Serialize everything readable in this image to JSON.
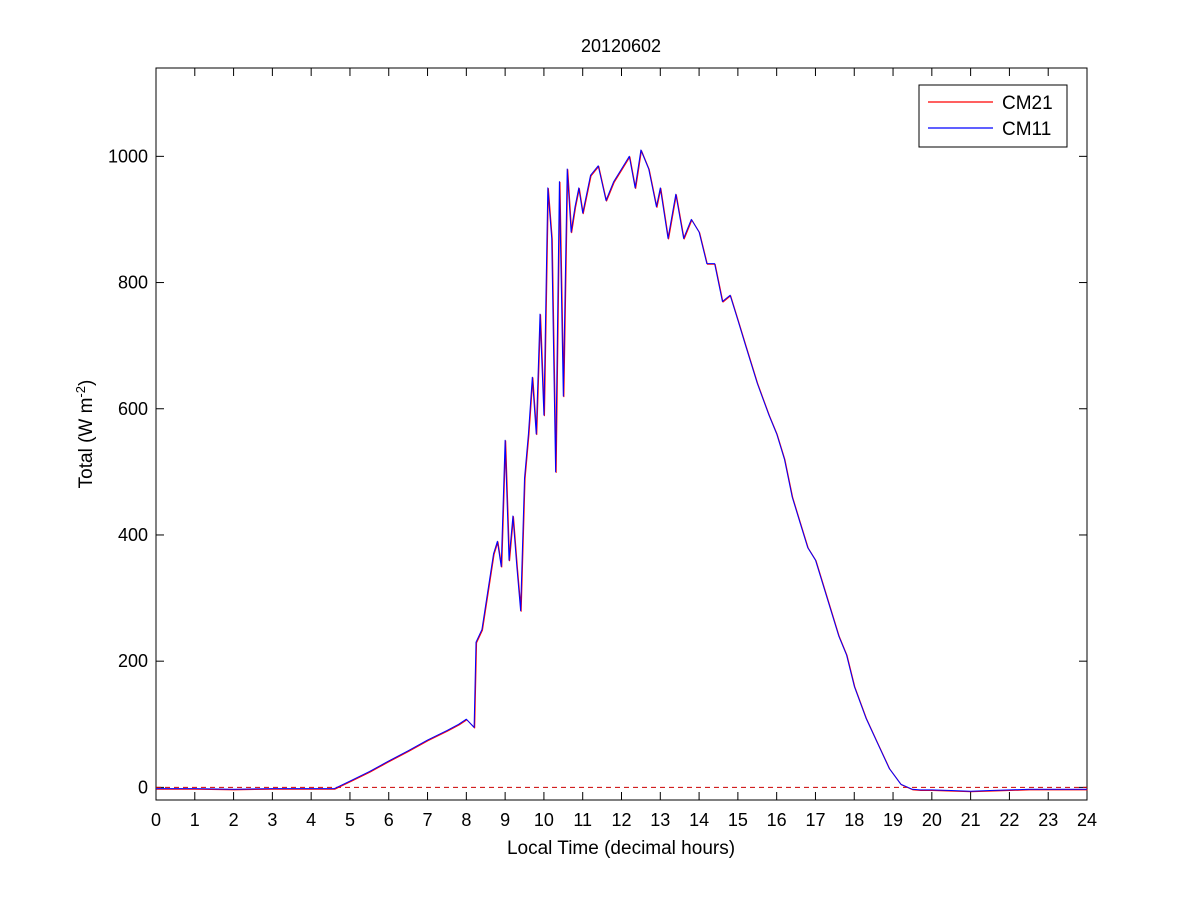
{
  "chart_data": {
    "type": "line",
    "title": "20120602",
    "xlabel": "Local Time (decimal hours)",
    "ylabel_prefix": "Total (W m",
    "ylabel_sup": "-2",
    "ylabel_suffix": ")",
    "xlim": [
      0,
      24
    ],
    "ylim": [
      -20,
      1140
    ],
    "xticks": [
      0,
      1,
      2,
      3,
      4,
      5,
      6,
      7,
      8,
      9,
      10,
      11,
      12,
      13,
      14,
      15,
      16,
      17,
      18,
      19,
      20,
      21,
      22,
      23,
      24
    ],
    "yticks": [
      0,
      200,
      400,
      600,
      800,
      1000
    ],
    "grid": false,
    "legend_position": "top-right",
    "reference_line": {
      "y": 0,
      "style": "dashed",
      "color": "#cc0000"
    },
    "series": [
      {
        "name": "CM21",
        "color": "#ff0000"
      },
      {
        "name": "CM11",
        "color": "#0000ff"
      }
    ],
    "x": [
      0,
      1,
      2,
      3,
      4,
      4.6,
      5,
      5.5,
      6,
      6.5,
      7,
      7.5,
      7.8,
      8,
      8.2,
      8.25,
      8.4,
      8.7,
      8.8,
      8.9,
      9,
      9.1,
      9.2,
      9.3,
      9.4,
      9.5,
      9.6,
      9.7,
      9.8,
      9.9,
      10,
      10.1,
      10.2,
      10.3,
      10.4,
      10.5,
      10.6,
      10.7,
      10.8,
      10.9,
      11,
      11.2,
      11.4,
      11.6,
      11.8,
      12,
      12.2,
      12.35,
      12.5,
      12.7,
      12.9,
      13,
      13.2,
      13.4,
      13.6,
      13.8,
      14,
      14.2,
      14.4,
      14.6,
      14.8,
      15,
      15.2,
      15.5,
      15.8,
      16,
      16.2,
      16.4,
      16.6,
      16.8,
      17,
      17.3,
      17.6,
      17.8,
      18,
      18.3,
      18.6,
      18.9,
      19.2,
      19.5,
      19.7,
      20,
      20.5,
      21,
      21.5,
      22,
      22.5,
      23,
      24
    ],
    "y": [
      -2,
      -2,
      -3,
      -2,
      -2,
      -2,
      10,
      25,
      42,
      58,
      75,
      90,
      100,
      108,
      95,
      230,
      250,
      370,
      390,
      350,
      550,
      360,
      430,
      350,
      280,
      490,
      560,
      650,
      560,
      750,
      590,
      950,
      870,
      500,
      960,
      620,
      980,
      880,
      920,
      950,
      910,
      970,
      985,
      930,
      960,
      980,
      1000,
      950,
      1010,
      980,
      920,
      950,
      870,
      940,
      870,
      900,
      880,
      830,
      830,
      770,
      780,
      740,
      700,
      640,
      590,
      560,
      520,
      460,
      420,
      380,
      360,
      300,
      240,
      210,
      160,
      110,
      70,
      30,
      5,
      -3,
      -4,
      -4,
      -5,
      -6,
      -5,
      -4,
      -3,
      -3,
      -3
    ]
  }
}
